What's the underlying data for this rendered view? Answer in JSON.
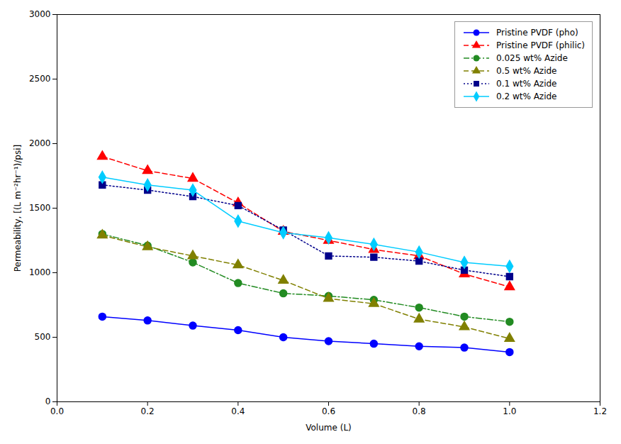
{
  "chart_data": {
    "type": "line",
    "xlabel": "Volume (L)",
    "ylabel": "Permeability, [(L m⁻²hr⁻¹)/psi]",
    "x": [
      0.1,
      0.2,
      0.3,
      0.4,
      0.5,
      0.6,
      0.7,
      0.8,
      0.9,
      1.0
    ],
    "series": [
      {
        "name": "Pristine PVDF (pho)",
        "color": "#0000FF",
        "marker": "circle",
        "line_style": "solid",
        "values": [
          660,
          630,
          590,
          555,
          500,
          470,
          450,
          430,
          420,
          385
        ]
      },
      {
        "name": "Pristine PVDF (philic)",
        "color": "#FF0000",
        "marker": "triangle",
        "line_style": "dashed",
        "values": [
          1900,
          1790,
          1730,
          1540,
          1320,
          1250,
          1180,
          1130,
          990,
          890
        ]
      },
      {
        "name": "0.025 wt% Azide",
        "color": "#228B22",
        "marker": "circle",
        "line_style": "dashdot",
        "values": [
          1300,
          1210,
          1080,
          920,
          840,
          820,
          790,
          730,
          660,
          620
        ]
      },
      {
        "name": "0.5 wt% Azide",
        "color": "#808000",
        "marker": "triangle",
        "line_style": "dashed",
        "values": [
          1290,
          1200,
          1130,
          1060,
          940,
          800,
          760,
          640,
          580,
          490
        ]
      },
      {
        "name": "0.1 wt% Azide",
        "color": "#00008B",
        "marker": "square",
        "line_style": "dotted",
        "values": [
          1680,
          1640,
          1590,
          1520,
          1330,
          1130,
          1120,
          1090,
          1020,
          970
        ]
      },
      {
        "name": "0.2 wt% Azide",
        "color": "#00CCFF",
        "marker": "diamond",
        "line_style": "solid",
        "values": [
          1740,
          1680,
          1640,
          1400,
          1310,
          1270,
          1220,
          1160,
          1080,
          1050
        ]
      }
    ],
    "xlim": [
      0.0,
      1.2
    ],
    "ylim": [
      0,
      3000
    ],
    "xticks": [
      {
        "value": 0,
        "label": "0.0"
      },
      0.2,
      0.4,
      0.6,
      0.8,
      {
        "value": 1,
        "label": "1.0"
      },
      1.2
    ],
    "yticks": [
      0,
      500,
      1000,
      1500,
      2000,
      2500,
      3000
    ],
    "grid": false,
    "legend": "upper right"
  }
}
